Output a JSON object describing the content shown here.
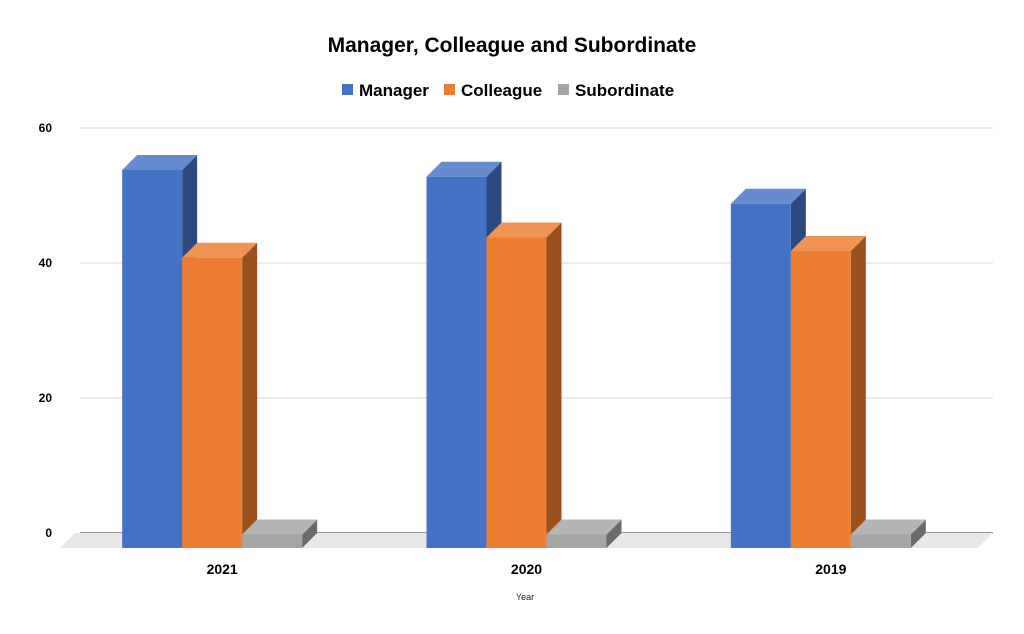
{
  "chart_data": {
    "type": "bar",
    "title": "Manager, Colleague and Subordinate",
    "xlabel": "Year",
    "ylabel": "",
    "categories": [
      "2021",
      "2020",
      "2019"
    ],
    "series": [
      {
        "name": "Manager",
        "values": [
          56,
          55,
          51
        ],
        "color": "#4472C4"
      },
      {
        "name": "Colleague",
        "values": [
          43,
          46,
          44
        ],
        "color": "#ED7D31"
      },
      {
        "name": "Subordinate",
        "values": [
          2,
          2,
          2
        ],
        "color": "#A5A5A5"
      }
    ],
    "ylim": [
      0,
      60
    ],
    "yticks": [
      "0",
      "20",
      "40",
      "60"
    ],
    "grid": true,
    "legend_position": "top",
    "three_d": true
  }
}
